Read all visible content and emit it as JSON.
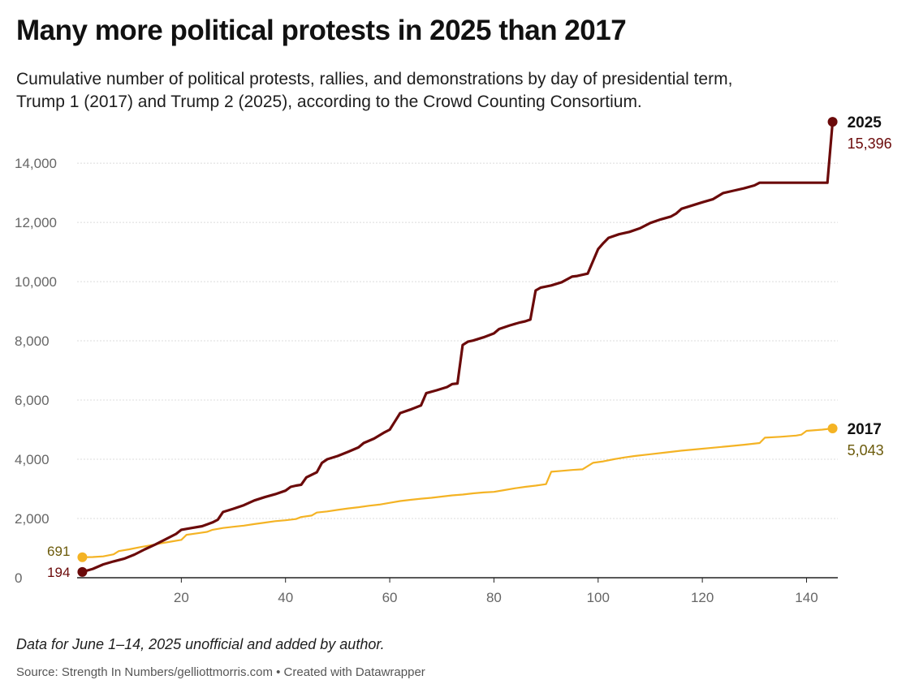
{
  "header": {
    "title": "Many more political protests in 2025 than 2017",
    "subtitle_line1": "Cumulative number of political protests, rallies, and demonstrations by day of presidential term,",
    "subtitle_line2": "Trump 1 (2017) and Trump 2 (2025), according to the Crowd Counting Consortium."
  },
  "footer": {
    "note": "Data for June 1–14, 2025 unofficial and added by author.",
    "source": "Source: Strength In Numbers/gelliottmorris.com • Created with Datawrapper"
  },
  "colors": {
    "series_2025": "#6b0a0a",
    "series_2017": "#f4b324",
    "label_2017_value": "#6b5a0a",
    "grid": "#dcdcdc",
    "tick_text": "#666666"
  },
  "chart_data": {
    "type": "line",
    "title": "",
    "xlabel": "",
    "ylabel": "",
    "xlim": [
      0,
      146
    ],
    "ylim": [
      0,
      15400
    ],
    "x_ticks": [
      20,
      40,
      60,
      80,
      100,
      120,
      140
    ],
    "x_tick_labels": [
      "20",
      "40",
      "60",
      "80",
      "100",
      "120",
      "140"
    ],
    "y_ticks": [
      0,
      2000,
      4000,
      6000,
      8000,
      10000,
      12000,
      14000
    ],
    "y_tick_labels": [
      "0",
      "2,000",
      "4,000",
      "6,000",
      "8,000",
      "10,000",
      "12,000",
      "14,000"
    ],
    "grid": "horizontal",
    "series": [
      {
        "name": "2025",
        "color": "#6b0a0a",
        "start_label": "194",
        "end_label": "15,396",
        "points": [
          [
            1,
            194
          ],
          [
            3,
            300
          ],
          [
            5,
            450
          ],
          [
            7,
            550
          ],
          [
            9,
            640
          ],
          [
            11,
            780
          ],
          [
            13,
            960
          ],
          [
            15,
            1120
          ],
          [
            17,
            1300
          ],
          [
            19,
            1480
          ],
          [
            20,
            1620
          ],
          [
            22,
            1680
          ],
          [
            24,
            1740
          ],
          [
            26,
            1870
          ],
          [
            27,
            1960
          ],
          [
            28,
            2220
          ],
          [
            30,
            2330
          ],
          [
            32,
            2450
          ],
          [
            34,
            2610
          ],
          [
            36,
            2720
          ],
          [
            38,
            2820
          ],
          [
            40,
            2940
          ],
          [
            41,
            3070
          ],
          [
            42,
            3110
          ],
          [
            43,
            3140
          ],
          [
            44,
            3390
          ],
          [
            46,
            3560
          ],
          [
            47,
            3880
          ],
          [
            48,
            4000
          ],
          [
            50,
            4110
          ],
          [
            52,
            4250
          ],
          [
            54,
            4400
          ],
          [
            55,
            4550
          ],
          [
            57,
            4700
          ],
          [
            59,
            4910
          ],
          [
            60,
            5000
          ],
          [
            61,
            5280
          ],
          [
            62,
            5560
          ],
          [
            64,
            5680
          ],
          [
            66,
            5820
          ],
          [
            67,
            6230
          ],
          [
            69,
            6330
          ],
          [
            71,
            6440
          ],
          [
            72,
            6540
          ],
          [
            73,
            6560
          ],
          [
            74,
            7860
          ],
          [
            75,
            7970
          ],
          [
            76,
            8010
          ],
          [
            78,
            8120
          ],
          [
            80,
            8250
          ],
          [
            81,
            8400
          ],
          [
            83,
            8520
          ],
          [
            85,
            8620
          ],
          [
            86,
            8660
          ],
          [
            87,
            8720
          ],
          [
            88,
            9700
          ],
          [
            89,
            9800
          ],
          [
            91,
            9870
          ],
          [
            93,
            9980
          ],
          [
            95,
            10170
          ],
          [
            96,
            10190
          ],
          [
            98,
            10270
          ],
          [
            100,
            11100
          ],
          [
            101,
            11300
          ],
          [
            102,
            11480
          ],
          [
            104,
            11600
          ],
          [
            106,
            11680
          ],
          [
            108,
            11800
          ],
          [
            110,
            11980
          ],
          [
            112,
            12100
          ],
          [
            114,
            12200
          ],
          [
            115,
            12300
          ],
          [
            116,
            12460
          ],
          [
            118,
            12570
          ],
          [
            120,
            12680
          ],
          [
            122,
            12780
          ],
          [
            124,
            12990
          ],
          [
            126,
            13070
          ],
          [
            128,
            13150
          ],
          [
            130,
            13250
          ],
          [
            131,
            13340
          ],
          [
            133,
            13340
          ],
          [
            135,
            13340
          ],
          [
            137,
            13340
          ],
          [
            139,
            13340
          ],
          [
            141,
            13340
          ],
          [
            143,
            13340
          ],
          [
            144,
            13340
          ],
          [
            145,
            15396
          ]
        ]
      },
      {
        "name": "2017",
        "color": "#f4b324",
        "start_label": "691",
        "end_label": "5,043",
        "points": [
          [
            1,
            691
          ],
          [
            3,
            700
          ],
          [
            5,
            720
          ],
          [
            7,
            790
          ],
          [
            8,
            900
          ],
          [
            10,
            960
          ],
          [
            12,
            1030
          ],
          [
            14,
            1090
          ],
          [
            16,
            1160
          ],
          [
            18,
            1220
          ],
          [
            20,
            1280
          ],
          [
            21,
            1450
          ],
          [
            23,
            1500
          ],
          [
            25,
            1550
          ],
          [
            26,
            1620
          ],
          [
            28,
            1680
          ],
          [
            30,
            1720
          ],
          [
            32,
            1760
          ],
          [
            34,
            1810
          ],
          [
            36,
            1860
          ],
          [
            38,
            1910
          ],
          [
            40,
            1940
          ],
          [
            42,
            1980
          ],
          [
            43,
            2050
          ],
          [
            45,
            2100
          ],
          [
            46,
            2200
          ],
          [
            48,
            2240
          ],
          [
            50,
            2290
          ],
          [
            52,
            2340
          ],
          [
            54,
            2380
          ],
          [
            56,
            2430
          ],
          [
            58,
            2470
          ],
          [
            60,
            2530
          ],
          [
            62,
            2590
          ],
          [
            64,
            2630
          ],
          [
            66,
            2670
          ],
          [
            68,
            2700
          ],
          [
            70,
            2740
          ],
          [
            72,
            2780
          ],
          [
            74,
            2810
          ],
          [
            76,
            2850
          ],
          [
            78,
            2880
          ],
          [
            80,
            2900
          ],
          [
            82,
            2960
          ],
          [
            84,
            3020
          ],
          [
            86,
            3070
          ],
          [
            88,
            3110
          ],
          [
            90,
            3160
          ],
          [
            91,
            3580
          ],
          [
            93,
            3610
          ],
          [
            95,
            3640
          ],
          [
            97,
            3660
          ],
          [
            99,
            3880
          ],
          [
            101,
            3930
          ],
          [
            103,
            4000
          ],
          [
            105,
            4060
          ],
          [
            107,
            4110
          ],
          [
            110,
            4170
          ],
          [
            113,
            4230
          ],
          [
            116,
            4290
          ],
          [
            119,
            4340
          ],
          [
            122,
            4390
          ],
          [
            125,
            4440
          ],
          [
            128,
            4490
          ],
          [
            131,
            4550
          ],
          [
            132,
            4730
          ],
          [
            135,
            4760
          ],
          [
            138,
            4800
          ],
          [
            139,
            4830
          ],
          [
            140,
            4960
          ],
          [
            143,
            5000
          ],
          [
            145,
            5043
          ]
        ]
      }
    ]
  }
}
